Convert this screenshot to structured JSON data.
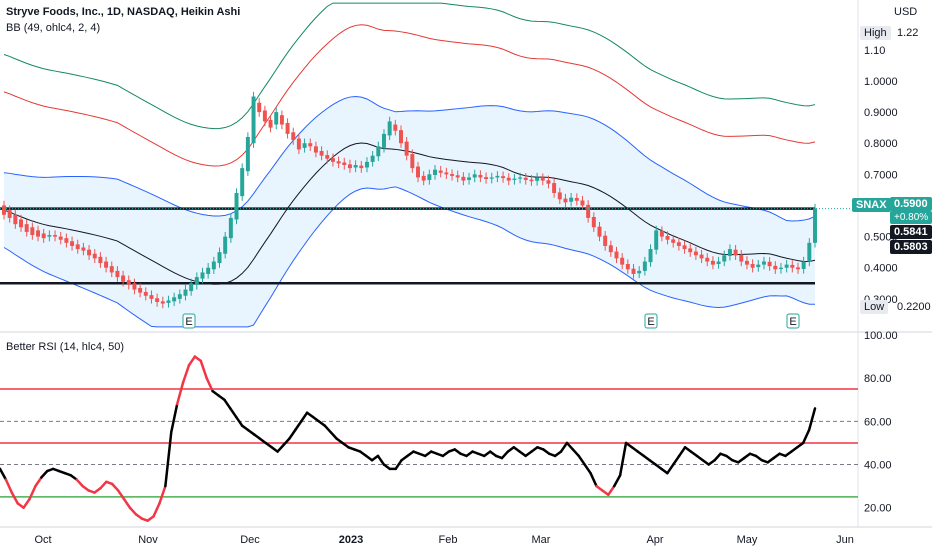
{
  "header": {
    "title": "Stryve Foods, Inc., 1D, NASDAQ, Heikin Ashi",
    "bb_label": "BB (49, ohlc4, 2, 4)",
    "rsi_label": "Better RSI (14, hlc4, 50)",
    "currency": "USD"
  },
  "colors": {
    "up": "#26a69a",
    "down": "#ef5350",
    "bb_blue": "#2962ff",
    "bb_red": "#e53935",
    "bb_green": "#138a5e",
    "rsi_red": "#f23645",
    "rsi_green": "#4caf50"
  },
  "price_tags": {
    "symbol": "SNAX",
    "last": "0.5900",
    "change": "+0.80%",
    "level1": "0.5841",
    "level2": "0.5803",
    "high_label": "High",
    "high_value": "1.22",
    "low_label": "Low",
    "low_value": "0.2200"
  },
  "earnings_marker": "E",
  "chart_data": [
    {
      "type": "candlestick",
      "y_ticks": [
        "1.10",
        "1.0000",
        "0.9000",
        "0.8000",
        "0.7000",
        "0.6000",
        "0.5000",
        "0.4000",
        "0.3000"
      ],
      "y_tick_values": [
        1.1,
        1.0,
        0.9,
        0.8,
        0.7,
        0.6,
        0.5,
        0.4,
        0.3
      ],
      "ylim": [
        0.2,
        1.26
      ],
      "x_ticks": [
        "Oct",
        "Nov",
        "Dec",
        "2023",
        "Feb",
        "Mar",
        "Apr",
        "May",
        "Jun"
      ],
      "horizontal_levels": [
        0.59,
        0.35
      ],
      "heikin_ashi": [
        {
          "o": 0.6,
          "c": 0.57
        },
        {
          "o": 0.585,
          "c": 0.56
        },
        {
          "o": 0.57,
          "c": 0.54
        },
        {
          "o": 0.555,
          "c": 0.53
        },
        {
          "o": 0.54,
          "c": 0.515
        },
        {
          "o": 0.53,
          "c": 0.505
        },
        {
          "o": 0.52,
          "c": 0.5
        },
        {
          "o": 0.51,
          "c": 0.495
        },
        {
          "o": 0.5,
          "c": 0.505
        },
        {
          "o": 0.505,
          "c": 0.5
        },
        {
          "o": 0.5,
          "c": 0.49
        },
        {
          "o": 0.495,
          "c": 0.48
        },
        {
          "o": 0.485,
          "c": 0.47
        },
        {
          "o": 0.475,
          "c": 0.46
        },
        {
          "o": 0.465,
          "c": 0.455
        },
        {
          "o": 0.458,
          "c": 0.44
        },
        {
          "o": 0.445,
          "c": 0.43
        },
        {
          "o": 0.435,
          "c": 0.415
        },
        {
          "o": 0.42,
          "c": 0.4
        },
        {
          "o": 0.405,
          "c": 0.385
        },
        {
          "o": 0.39,
          "c": 0.37
        },
        {
          "o": 0.375,
          "c": 0.355
        },
        {
          "o": 0.36,
          "c": 0.345
        },
        {
          "o": 0.35,
          "c": 0.33
        },
        {
          "o": 0.335,
          "c": 0.32
        },
        {
          "o": 0.322,
          "c": 0.31
        },
        {
          "o": 0.312,
          "c": 0.3
        },
        {
          "o": 0.302,
          "c": 0.29
        },
        {
          "o": 0.292,
          "c": 0.285
        },
        {
          "o": 0.287,
          "c": 0.295
        },
        {
          "o": 0.292,
          "c": 0.305
        },
        {
          "o": 0.3,
          "c": 0.315
        },
        {
          "o": 0.31,
          "c": 0.33
        },
        {
          "o": 0.325,
          "c": 0.35
        },
        {
          "o": 0.345,
          "c": 0.37
        },
        {
          "o": 0.365,
          "c": 0.385
        },
        {
          "o": 0.38,
          "c": 0.4
        },
        {
          "o": 0.395,
          "c": 0.42
        },
        {
          "o": 0.415,
          "c": 0.45
        },
        {
          "o": 0.445,
          "c": 0.5
        },
        {
          "o": 0.495,
          "c": 0.56
        },
        {
          "o": 0.555,
          "c": 0.64
        },
        {
          "o": 0.63,
          "c": 0.72
        },
        {
          "o": 0.71,
          "c": 0.82
        },
        {
          "o": 0.8,
          "c": 0.95
        },
        {
          "o": 0.93,
          "c": 0.9
        },
        {
          "o": 0.905,
          "c": 0.87
        },
        {
          "o": 0.875,
          "c": 0.85
        },
        {
          "o": 0.86,
          "c": 0.9
        },
        {
          "o": 0.89,
          "c": 0.86
        },
        {
          "o": 0.865,
          "c": 0.83
        },
        {
          "o": 0.835,
          "c": 0.81
        },
        {
          "o": 0.815,
          "c": 0.78
        },
        {
          "o": 0.785,
          "c": 0.8
        },
        {
          "o": 0.8,
          "c": 0.79
        },
        {
          "o": 0.79,
          "c": 0.77
        },
        {
          "o": 0.775,
          "c": 0.76
        },
        {
          "o": 0.762,
          "c": 0.75
        },
        {
          "o": 0.752,
          "c": 0.74
        },
        {
          "o": 0.742,
          "c": 0.735
        },
        {
          "o": 0.738,
          "c": 0.73
        },
        {
          "o": 0.732,
          "c": 0.72
        },
        {
          "o": 0.722,
          "c": 0.73
        },
        {
          "o": 0.728,
          "c": 0.72
        },
        {
          "o": 0.722,
          "c": 0.74
        },
        {
          "o": 0.74,
          "c": 0.76
        },
        {
          "o": 0.758,
          "c": 0.79
        },
        {
          "o": 0.785,
          "c": 0.83
        },
        {
          "o": 0.825,
          "c": 0.87
        },
        {
          "o": 0.86,
          "c": 0.84
        },
        {
          "o": 0.842,
          "c": 0.8
        },
        {
          "o": 0.805,
          "c": 0.76
        },
        {
          "o": 0.765,
          "c": 0.72
        },
        {
          "o": 0.725,
          "c": 0.69
        },
        {
          "o": 0.695,
          "c": 0.68
        },
        {
          "o": 0.682,
          "c": 0.7
        },
        {
          "o": 0.698,
          "c": 0.715
        },
        {
          "o": 0.712,
          "c": 0.705
        },
        {
          "o": 0.706,
          "c": 0.7
        },
        {
          "o": 0.701,
          "c": 0.695
        },
        {
          "o": 0.697,
          "c": 0.69
        },
        {
          "o": 0.692,
          "c": 0.68
        },
        {
          "o": 0.682,
          "c": 0.69
        },
        {
          "o": 0.69,
          "c": 0.7
        },
        {
          "o": 0.698,
          "c": 0.69
        },
        {
          "o": 0.691,
          "c": 0.685
        },
        {
          "o": 0.686,
          "c": 0.69
        },
        {
          "o": 0.69,
          "c": 0.695
        },
        {
          "o": 0.694,
          "c": 0.688
        },
        {
          "o": 0.689,
          "c": 0.68
        },
        {
          "o": 0.682,
          "c": 0.686
        },
        {
          "o": 0.686,
          "c": 0.69
        },
        {
          "o": 0.689,
          "c": 0.682
        },
        {
          "o": 0.683,
          "c": 0.678
        },
        {
          "o": 0.679,
          "c": 0.69
        },
        {
          "o": 0.688,
          "c": 0.68
        },
        {
          "o": 0.681,
          "c": 0.67
        },
        {
          "o": 0.672,
          "c": 0.64
        },
        {
          "o": 0.642,
          "c": 0.62
        },
        {
          "o": 0.622,
          "c": 0.61
        },
        {
          "o": 0.612,
          "c": 0.625
        },
        {
          "o": 0.624,
          "c": 0.615
        },
        {
          "o": 0.616,
          "c": 0.6
        },
        {
          "o": 0.602,
          "c": 0.56
        },
        {
          "o": 0.563,
          "c": 0.53
        },
        {
          "o": 0.532,
          "c": 0.5
        },
        {
          "o": 0.503,
          "c": 0.47
        },
        {
          "o": 0.472,
          "c": 0.45
        },
        {
          "o": 0.452,
          "c": 0.43
        },
        {
          "o": 0.432,
          "c": 0.41
        },
        {
          "o": 0.412,
          "c": 0.395
        },
        {
          "o": 0.397,
          "c": 0.38
        },
        {
          "o": 0.382,
          "c": 0.39
        },
        {
          "o": 0.39,
          "c": 0.42
        },
        {
          "o": 0.418,
          "c": 0.46
        },
        {
          "o": 0.458,
          "c": 0.52
        },
        {
          "o": 0.518,
          "c": 0.5
        },
        {
          "o": 0.502,
          "c": 0.49
        },
        {
          "o": 0.491,
          "c": 0.48
        },
        {
          "o": 0.482,
          "c": 0.47
        },
        {
          "o": 0.472,
          "c": 0.46
        },
        {
          "o": 0.462,
          "c": 0.45
        },
        {
          "o": 0.452,
          "c": 0.44
        },
        {
          "o": 0.442,
          "c": 0.43
        },
        {
          "o": 0.432,
          "c": 0.42
        },
        {
          "o": 0.422,
          "c": 0.41
        },
        {
          "o": 0.412,
          "c": 0.42
        },
        {
          "o": 0.42,
          "c": 0.44
        },
        {
          "o": 0.438,
          "c": 0.46
        },
        {
          "o": 0.458,
          "c": 0.44
        },
        {
          "o": 0.442,
          "c": 0.42
        },
        {
          "o": 0.422,
          "c": 0.41
        },
        {
          "o": 0.412,
          "c": 0.4
        },
        {
          "o": 0.402,
          "c": 0.41
        },
        {
          "o": 0.41,
          "c": 0.42
        },
        {
          "o": 0.419,
          "c": 0.405
        },
        {
          "o": 0.406,
          "c": 0.395
        },
        {
          "o": 0.396,
          "c": 0.4
        },
        {
          "o": 0.4,
          "c": 0.41
        },
        {
          "o": 0.409,
          "c": 0.4
        },
        {
          "o": 0.401,
          "c": 0.395
        },
        {
          "o": 0.396,
          "c": 0.42
        },
        {
          "o": 0.42,
          "c": 0.48
        },
        {
          "o": 0.48,
          "c": 0.59
        }
      ]
    },
    {
      "type": "line",
      "title": "Better RSI (14, hlc4, 50)",
      "ylim": [
        12,
        100
      ],
      "y_ticks": [
        "100.00",
        "80.00",
        "60.00",
        "40.00",
        "20.00"
      ],
      "y_tick_values": [
        100,
        80,
        60,
        40,
        20
      ],
      "levels": [
        75,
        60,
        50,
        40,
        25
      ],
      "overbought": 75,
      "oversold": 25,
      "values": [
        38,
        33,
        27,
        22,
        20,
        24,
        30,
        34,
        37,
        38,
        37,
        36,
        35,
        33,
        30,
        28,
        27,
        29,
        32,
        31,
        28,
        24,
        20,
        17,
        15,
        14,
        16,
        22,
        30,
        55,
        68,
        78,
        86,
        90,
        88,
        80,
        74,
        72,
        70,
        66,
        62,
        58,
        56,
        54,
        52,
        50,
        48,
        46,
        49,
        52,
        56,
        60,
        64,
        62,
        60,
        58,
        55,
        52,
        50,
        48,
        47,
        46,
        44,
        42,
        44,
        40,
        38,
        38,
        42,
        44,
        46,
        45,
        44,
        46,
        45,
        44,
        46,
        47,
        45,
        44,
        46,
        45,
        44,
        46,
        44,
        43,
        46,
        48,
        46,
        44,
        46,
        48,
        47,
        45,
        44,
        46,
        50,
        47,
        44,
        40,
        36,
        30,
        28,
        26,
        30,
        35,
        50,
        48,
        46,
        44,
        42,
        40,
        38,
        36,
        40,
        44,
        48,
        46,
        44,
        42,
        40,
        42,
        45,
        44,
        42,
        41,
        43,
        45,
        44,
        42,
        41,
        43,
        45,
        44,
        46,
        48,
        50,
        56,
        66
      ]
    }
  ]
}
